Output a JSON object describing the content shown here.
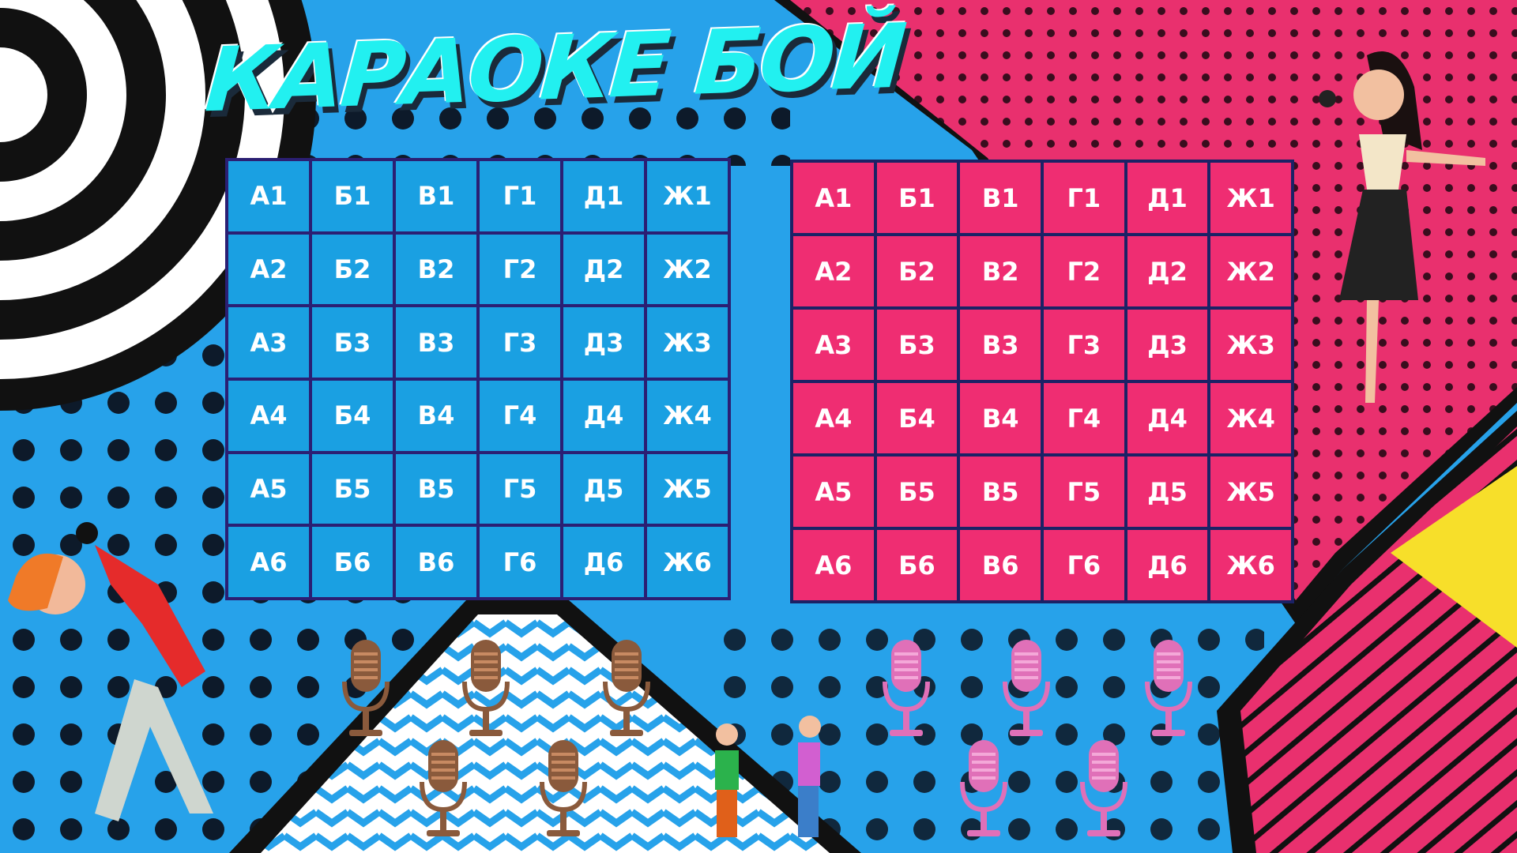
{
  "title": "КАРАОКЕ БОЙ",
  "colors": {
    "background": "#27a2ea",
    "blue_cell": "#1aa0e2",
    "pink_cell": "#ef2d72",
    "pink_bg": "#e9306e",
    "title": "#22f0f0",
    "yellow": "#f7df2a"
  },
  "boards": {
    "blue": {
      "cells": [
        "А1",
        "Б1",
        "В1",
        "Г1",
        "Д1",
        "Ж1",
        "А2",
        "Б2",
        "В2",
        "Г2",
        "Д2",
        "Ж2",
        "А3",
        "Б3",
        "В3",
        "Г3",
        "Д3",
        "Ж3",
        "А4",
        "Б4",
        "В4",
        "Г4",
        "Д4",
        "Ж4",
        "А5",
        "Б5",
        "В5",
        "Г5",
        "Д5",
        "Ж5",
        "А6",
        "Б6",
        "В6",
        "Г6",
        "Д6",
        "Ж6"
      ]
    },
    "pink": {
      "cells": [
        "А1",
        "Б1",
        "В1",
        "Г1",
        "Д1",
        "Ж1",
        "А2",
        "Б2",
        "В2",
        "Г2",
        "Д2",
        "Ж2",
        "А3",
        "Б3",
        "В3",
        "Г3",
        "Д3",
        "Ж3",
        "А4",
        "Б4",
        "В4",
        "Г4",
        "Д4",
        "Ж4",
        "А5",
        "Б5",
        "В5",
        "Г5",
        "Д5",
        "Ж5",
        "А6",
        "Б6",
        "В6",
        "Г6",
        "Д6",
        "Ж6"
      ]
    }
  },
  "team_icons": {
    "blue": "microphone-brown-icon",
    "pink": "microphone-pink-icon"
  }
}
